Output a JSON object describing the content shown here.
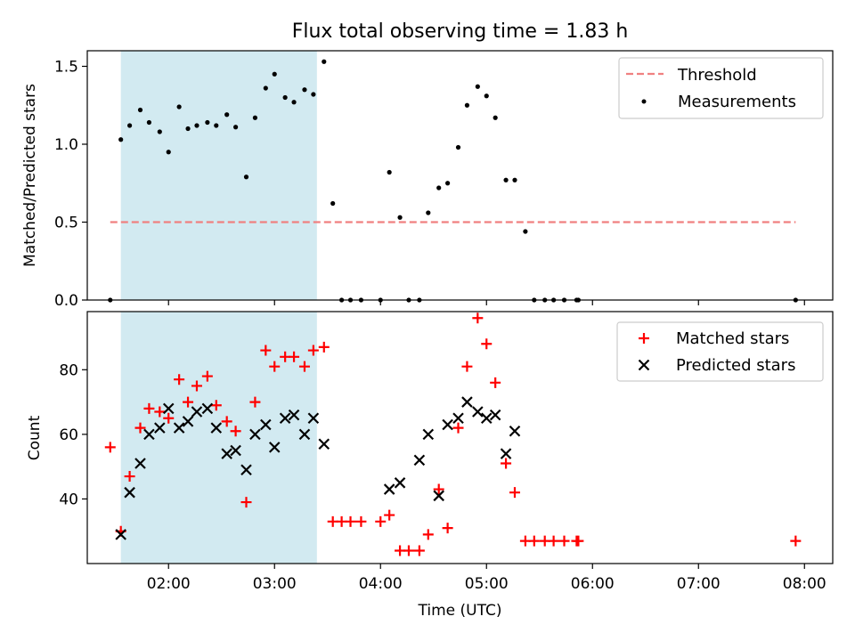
{
  "figure": {
    "title": "Flux total observing time = 1.83 h",
    "colors": {
      "threshold": "#f08080",
      "band": "#add8e6",
      "matched": "#ff0000",
      "predicted": "#000000",
      "measurement": "#000000"
    }
  },
  "chart_data": [
    {
      "type": "scatter",
      "ylabel": "Matched/Predicted stars",
      "xlabel": "",
      "xlim": [
        "01:14",
        "08:16"
      ],
      "ylim": [
        0,
        1.6
      ],
      "yticks": [
        "0.0",
        "0.5",
        "1.0",
        "1.5"
      ],
      "grid": false,
      "legend_position": "top-right",
      "shaded_interval": [
        "01:33",
        "03:24"
      ],
      "threshold": {
        "name": "Threshold",
        "value": 0.5,
        "x_range": [
          "01:27",
          "07:55"
        ]
      },
      "series": [
        {
          "name": "Measurements",
          "x": [
            "01:27",
            "01:33",
            "01:38",
            "01:44",
            "01:49",
            "01:55",
            "02:00",
            "02:06",
            "02:11",
            "02:16",
            "02:22",
            "02:27",
            "02:33",
            "02:38",
            "02:44",
            "02:49",
            "02:55",
            "03:00",
            "03:06",
            "03:11",
            "03:17",
            "03:22",
            "03:28",
            "03:33",
            "03:38",
            "03:43",
            "03:49",
            "04:00",
            "04:05",
            "04:11",
            "04:16",
            "04:22",
            "04:27",
            "04:33",
            "04:38",
            "04:44",
            "04:49",
            "04:55",
            "05:00",
            "05:05",
            "05:11",
            "05:16",
            "05:22",
            "05:27",
            "05:33",
            "05:38",
            "05:44",
            "05:51",
            "05:52",
            "07:55"
          ],
          "y": [
            0.0,
            1.03,
            1.12,
            1.22,
            1.14,
            1.08,
            0.95,
            1.24,
            1.1,
            1.12,
            1.14,
            1.12,
            1.19,
            1.11,
            0.79,
            1.17,
            1.36,
            1.45,
            1.3,
            1.27,
            1.35,
            1.32,
            1.53,
            0.62,
            0.0,
            0.0,
            0.0,
            0.0,
            0.82,
            0.53,
            0.0,
            0.0,
            0.56,
            0.72,
            0.75,
            0.98,
            1.25,
            1.37,
            1.31,
            1.17,
            0.77,
            0.77,
            0.44,
            0.0,
            0.0,
            0.0,
            0.0,
            0.0,
            0.0,
            0.0
          ]
        }
      ]
    },
    {
      "type": "scatter",
      "ylabel": "Count",
      "xlabel": "Time (UTC)",
      "xlim": [
        "01:14",
        "08:16"
      ],
      "ylim": [
        20,
        98
      ],
      "yticks": [
        "40",
        "60",
        "80"
      ],
      "xticks": [
        "02:00",
        "03:00",
        "04:00",
        "05:00",
        "06:00",
        "07:00",
        "08:00"
      ],
      "grid": false,
      "legend_position": "top-right",
      "shaded_interval": [
        "01:33",
        "03:24"
      ],
      "series": [
        {
          "name": "Matched stars",
          "x": [
            "01:27",
            "01:33",
            "01:38",
            "01:44",
            "01:49",
            "01:55",
            "02:00",
            "02:06",
            "02:11",
            "02:16",
            "02:22",
            "02:27",
            "02:33",
            "02:38",
            "02:44",
            "02:49",
            "02:55",
            "03:00",
            "03:06",
            "03:11",
            "03:17",
            "03:22",
            "03:28",
            "03:33",
            "03:38",
            "03:43",
            "03:49",
            "04:00",
            "04:05",
            "04:11",
            "04:16",
            "04:22",
            "04:27",
            "04:33",
            "04:38",
            "04:44",
            "04:49",
            "04:55",
            "05:00",
            "05:05",
            "05:11",
            "05:16",
            "05:22",
            "05:27",
            "05:33",
            "05:38",
            "05:44",
            "05:51",
            "05:52",
            "07:55"
          ],
          "y": [
            56,
            30,
            47,
            62,
            68,
            67,
            65,
            77,
            70,
            75,
            78,
            69,
            64,
            61,
            39,
            70,
            86,
            81,
            84,
            84,
            81,
            86,
            87,
            33,
            33,
            33,
            33,
            33,
            35,
            24,
            24,
            24,
            29,
            43,
            31,
            62,
            81,
            96,
            88,
            76,
            51,
            42,
            27,
            27,
            27,
            27,
            27,
            27,
            27,
            27
          ]
        },
        {
          "name": "Predicted stars",
          "x": [
            "01:33",
            "01:38",
            "01:44",
            "01:49",
            "01:55",
            "02:00",
            "02:06",
            "02:11",
            "02:16",
            "02:22",
            "02:27",
            "02:33",
            "02:38",
            "02:44",
            "02:49",
            "02:55",
            "03:00",
            "03:06",
            "03:11",
            "03:17",
            "03:22",
            "03:28",
            "04:05",
            "04:11",
            "04:22",
            "04:27",
            "04:33",
            "04:38",
            "04:44",
            "04:49",
            "04:55",
            "05:00",
            "05:05",
            "05:11",
            "05:16"
          ],
          "y": [
            29,
            42,
            51,
            60,
            62,
            68,
            62,
            64,
            67,
            68,
            62,
            54,
            55,
            49,
            60,
            63,
            56,
            65,
            66,
            60,
            65,
            57,
            43,
            45,
            52,
            60,
            41,
            63,
            65,
            70,
            67,
            65,
            66,
            54,
            61
          ]
        }
      ]
    }
  ]
}
